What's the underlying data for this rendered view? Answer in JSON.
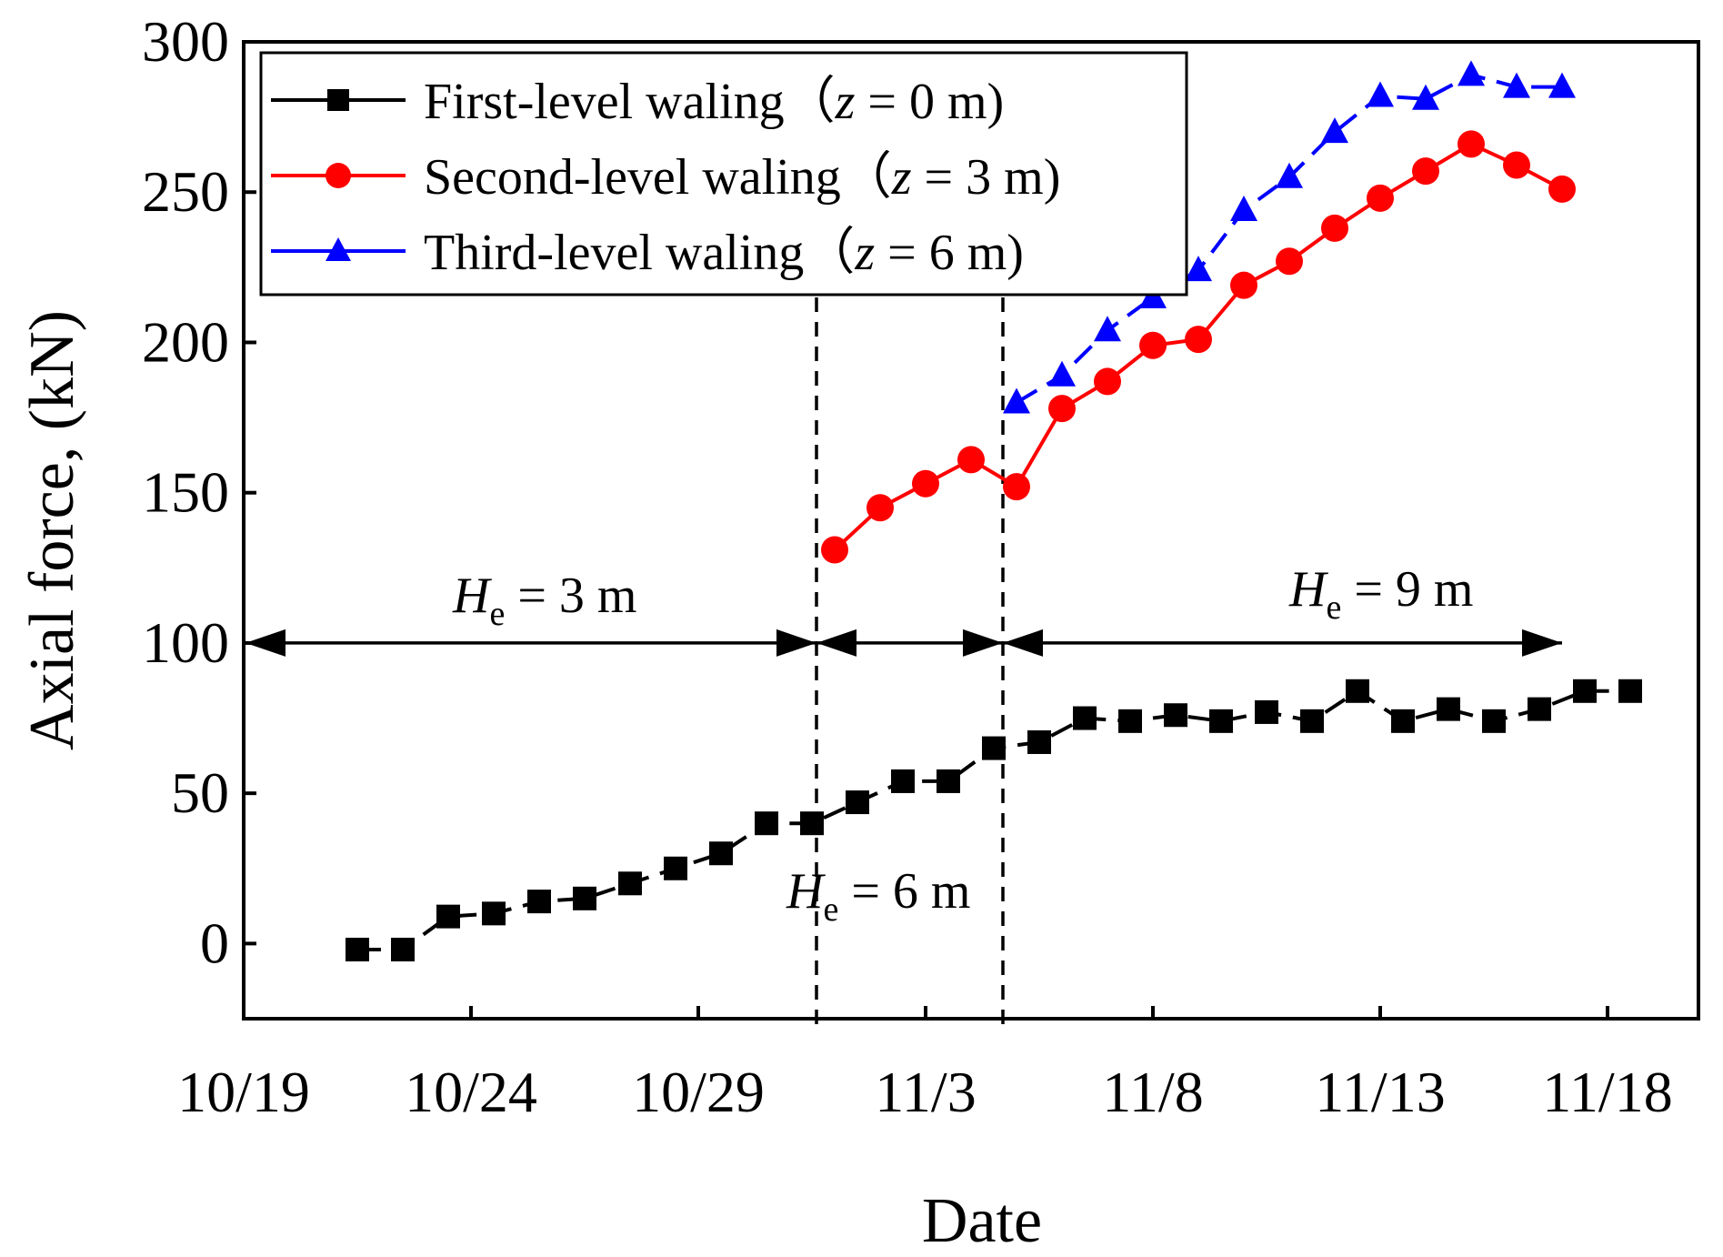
{
  "chart_data": {
    "type": "line",
    "xlabel": "Date",
    "ylabel": "Axial force, (kN)",
    "ylim": [
      -25,
      300
    ],
    "xlim": [
      0,
      32
    ],
    "yticks": [
      0,
      50,
      100,
      150,
      200,
      250,
      300
    ],
    "xticks": [
      {
        "x": 0,
        "label": "10/19"
      },
      {
        "x": 5,
        "label": "10/24"
      },
      {
        "x": 10,
        "label": "10/29"
      },
      {
        "x": 15,
        "label": "11/3"
      },
      {
        "x": 20,
        "label": "11/8"
      },
      {
        "x": 25,
        "label": "11/13"
      },
      {
        "x": 30,
        "label": "11/18"
      }
    ],
    "series": [
      {
        "name": "First-level waling",
        "legend_label": "First-level waling（",
        "z_label": "z",
        "depth_label": " = 0 m)",
        "color": "#000000",
        "marker": "square",
        "line_style": "dashed",
        "x": [
          2.5,
          3.5,
          4.5,
          5.5,
          6.5,
          7.5,
          8.5,
          9.5,
          10.5,
          11.5,
          12.5,
          13.5,
          14.5,
          15.5,
          16.5,
          17.5,
          18.5,
          19.5,
          20.5,
          21.5,
          22.5,
          23.5,
          24.5,
          25.5,
          26.5,
          27.5,
          28.5,
          29.5,
          30.5
        ],
        "values": [
          -2,
          -2,
          9,
          10,
          14,
          15,
          20,
          25,
          30,
          40,
          40,
          47,
          54,
          54,
          65,
          67,
          75,
          74,
          76,
          74,
          77,
          74,
          84,
          74,
          78,
          74,
          78,
          84,
          84
        ]
      },
      {
        "name": "Second-level waling",
        "legend_label": "Second-level waling（",
        "z_label": "z",
        "depth_label": " = 3 m)",
        "color": "#ff0000",
        "marker": "circle",
        "line_style": "solid",
        "x": [
          13.0,
          14.0,
          15.0,
          16.0,
          17.0,
          18.0,
          19.0,
          20.0,
          21.0,
          22.0,
          23.0,
          24.0,
          25.0,
          26.0,
          27.0,
          28.0,
          29.0
        ],
        "values": [
          131,
          145,
          153,
          161,
          152,
          178,
          187,
          199,
          201,
          219,
          227,
          238,
          248,
          257,
          266,
          259,
          251
        ]
      },
      {
        "name": "Third-level waling",
        "legend_label": "Third-level waling（",
        "z_label": "z",
        "depth_label": " = 6 m)",
        "color": "#0000ff",
        "marker": "triangle",
        "line_style": "dashed",
        "x": [
          17.0,
          18.0,
          19.0,
          20.0,
          21.0,
          22.0,
          23.0,
          24.0,
          25.0,
          26.0,
          27.0,
          28.0,
          29.0
        ],
        "values": [
          180,
          189,
          204,
          215,
          224,
          244,
          255,
          270,
          282,
          281,
          289,
          285,
          285
        ]
      }
    ],
    "vlines": [
      12.6,
      16.7
    ],
    "stage_arrow_y": 100,
    "annotations": [
      {
        "label": "H",
        "sub": "e",
        "rest": " = 3 m"
      },
      {
        "label": "H",
        "sub": "e",
        "rest": " = 6 m"
      },
      {
        "label": "H",
        "sub": "e",
        "rest": " = 9 m"
      }
    ]
  }
}
